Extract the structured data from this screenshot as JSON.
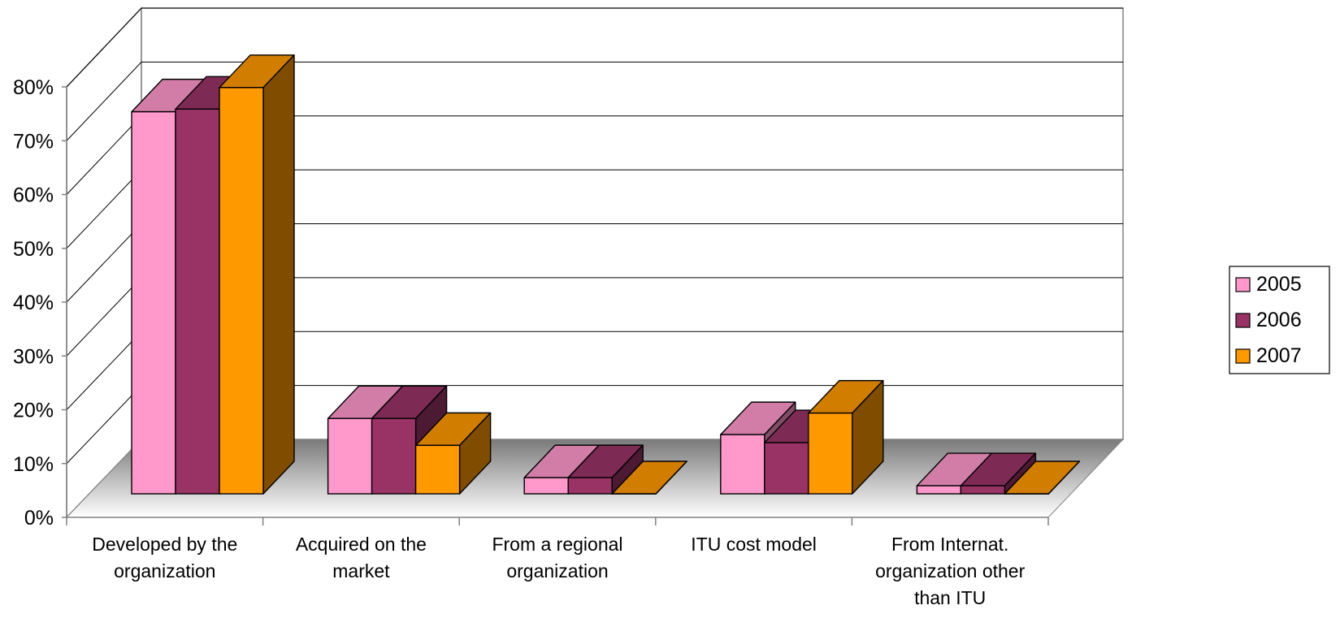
{
  "chart_data": {
    "type": "bar",
    "style": "3d-clustered-column",
    "categories": [
      [
        "Developed by the",
        "organization"
      ],
      [
        "Acquired on the",
        "market"
      ],
      [
        "From a regional",
        "organization"
      ],
      [
        "ITU cost model"
      ],
      [
        "From Internat.",
        "organization other",
        "than ITU"
      ]
    ],
    "series": [
      {
        "name": "2005",
        "color": "#FF99CC",
        "values": [
          0.71,
          0.14,
          0.03,
          0.11,
          0.015
        ]
      },
      {
        "name": "2006",
        "color": "#993366",
        "values": [
          0.715,
          0.14,
          0.03,
          0.095,
          0.015
        ]
      },
      {
        "name": "2007",
        "color": "#FF9900",
        "values": [
          0.755,
          0.09,
          0.0,
          0.15,
          0.0
        ]
      }
    ],
    "y_ticks": [
      "0%",
      "10%",
      "20%",
      "30%",
      "40%",
      "50%",
      "60%",
      "70%",
      "80%"
    ],
    "ylim": [
      0,
      0.8
    ],
    "grid": true,
    "legend": "right"
  }
}
